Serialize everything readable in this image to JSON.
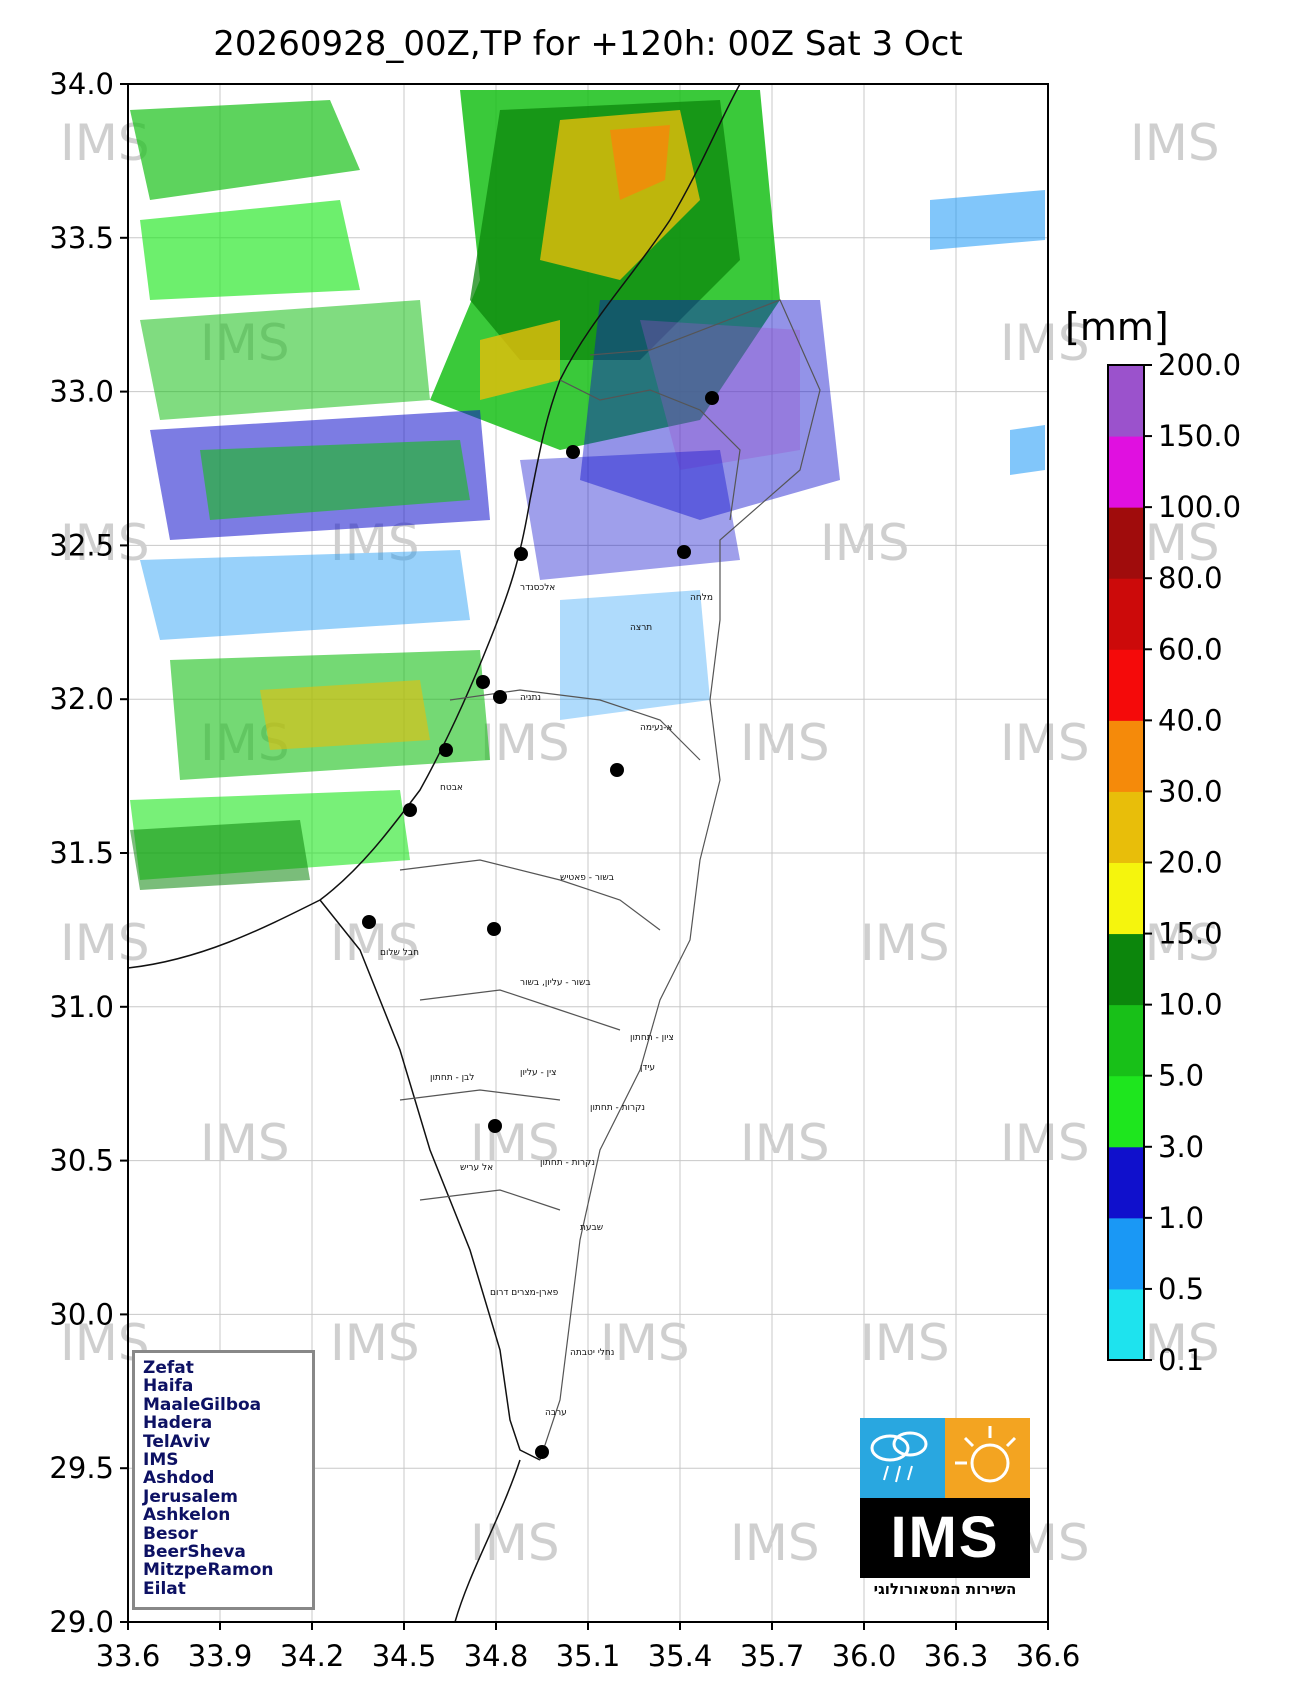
{
  "title": "20260928_00Z,TP for +120h: 00Z Sat 3 Oct",
  "map": {
    "x_ticks": [
      "33.6",
      "33.9",
      "34.2",
      "34.5",
      "34.8",
      "35.1",
      "35.4",
      "35.7",
      "36.0",
      "36.3",
      "36.6"
    ],
    "y_ticks": [
      "34.0",
      "33.5",
      "33.0",
      "32.5",
      "32.0",
      "31.5",
      "31.0",
      "30.5",
      "30.0",
      "29.5",
      "29.0"
    ],
    "lon_range": [
      33.6,
      36.6
    ],
    "lat_range": [
      29.0,
      34.0
    ],
    "watermark": "IMS",
    "grid": true
  },
  "colorbar": {
    "unit": "[mm]",
    "levels": [
      "0.1",
      "0.5",
      "1.0",
      "3.0",
      "5.0",
      "10.0",
      "15.0",
      "20.0",
      "30.0",
      "40.0",
      "60.0",
      "80.0",
      "100.0",
      "150.0",
      "200.0"
    ],
    "colors": [
      "#1ee3ee",
      "#1a98f5",
      "#1010cc",
      "#1ee61e",
      "#18c018",
      "#0c860c",
      "#f5f50d",
      "#e8be0a",
      "#f58a0a",
      "#f50a0a",
      "#cc0a0a",
      "#a00c0c",
      "#e010e0",
      "#9b52cc"
    ]
  },
  "stations": {
    "legend": [
      "Zefat",
      "Haifa",
      "MaaleGilboa",
      "Hadera",
      "TelAviv",
      "IMS",
      "Ashdod",
      "Jerusalem",
      "Ashkelon",
      "Besor",
      "BeerSheva",
      "MitzpeRamon",
      "Eilat"
    ]
  },
  "logo": {
    "name": "IMS",
    "subtitle": "השירות המטאורולוגי"
  }
}
